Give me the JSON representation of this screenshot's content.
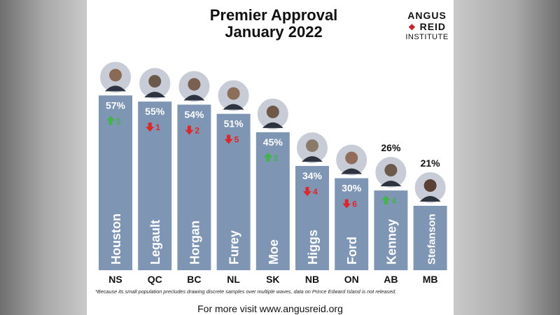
{
  "title_line1": "Premier Approval",
  "title_line2": "January 2022",
  "logo": {
    "line1": "ANGUS",
    "line2": "REID",
    "line3": "INSTITUTE"
  },
  "footnote": "*Because its small population precludes drawing discrete samples over multiple waves, data on Prince Edward Island is not released.",
  "footer": "For more visit www.angusreid.org",
  "colors": {
    "bar": "#7f95b4",
    "up": "#3fb54a",
    "down": "#e0262a"
  },
  "chart_data": {
    "type": "bar",
    "categories": [
      "NS",
      "QC",
      "BC",
      "NL",
      "SK",
      "NB",
      "ON",
      "AB",
      "MB"
    ],
    "names": [
      "Houston",
      "Legault",
      "Horgan",
      "Furey",
      "Moe",
      "Higgs",
      "Ford",
      "Kenney",
      "Stefanson"
    ],
    "values": [
      57,
      55,
      54,
      51,
      45,
      34,
      30,
      26,
      21
    ],
    "value_labels": [
      "57%",
      "55%",
      "54%",
      "51%",
      "45%",
      "34%",
      "30%",
      "26%",
      "21%"
    ],
    "changes": [
      {
        "direction": "up",
        "amount": "2"
      },
      {
        "direction": "down",
        "amount": "1"
      },
      {
        "direction": "down",
        "amount": "2"
      },
      {
        "direction": "down",
        "amount": "5"
      },
      {
        "direction": "up",
        "amount": "2"
      },
      {
        "direction": "down",
        "amount": "4"
      },
      {
        "direction": "down",
        "amount": "6"
      },
      {
        "direction": "up",
        "amount": "4"
      },
      null
    ],
    "ylim": [
      0,
      100
    ]
  }
}
